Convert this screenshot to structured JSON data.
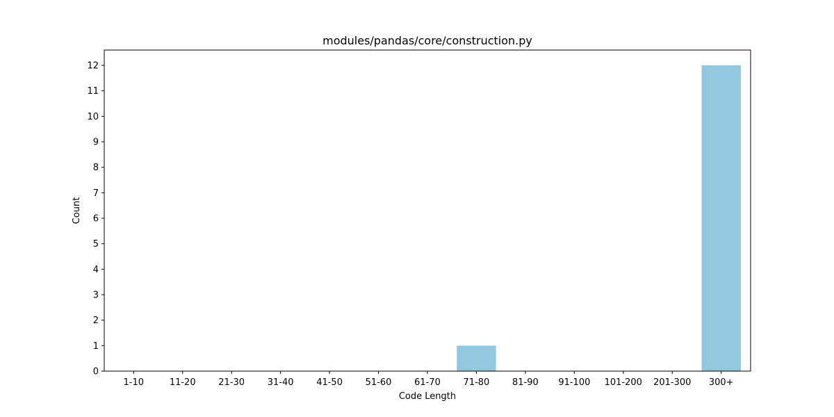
{
  "chart_data": {
    "type": "bar",
    "title": "modules/pandas/core/construction.py",
    "xlabel": "Code Length",
    "ylabel": "Count",
    "categories": [
      "1-10",
      "11-20",
      "21-30",
      "31-40",
      "41-50",
      "51-60",
      "61-70",
      "71-80",
      "81-90",
      "91-100",
      "101-200",
      "201-300",
      "300+"
    ],
    "values": [
      0,
      0,
      0,
      0,
      0,
      0,
      0,
      1,
      0,
      0,
      0,
      0,
      12
    ],
    "ylim": [
      0,
      12.6
    ],
    "yticks": [
      0,
      1,
      2,
      3,
      4,
      5,
      6,
      7,
      8,
      9,
      10,
      11,
      12
    ],
    "grid": false,
    "legend": "none",
    "bar_color": "#92c8dd"
  }
}
